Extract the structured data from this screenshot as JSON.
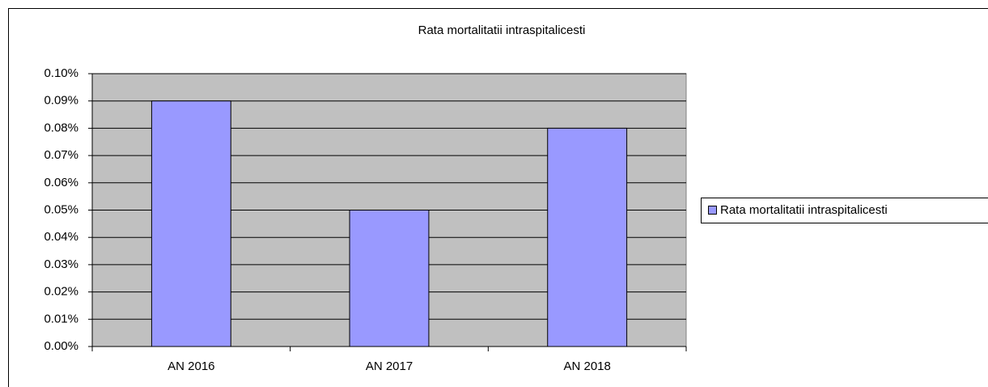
{
  "chart_data": {
    "type": "bar",
    "title": "Rata mortalitatii intraspitalicesti",
    "categories": [
      "AN 2016",
      "AN 2017",
      "AN 2018"
    ],
    "series": [
      {
        "name": "Rata mortalitatii intraspitalicesti",
        "color": "#9999ff",
        "values": [
          0.09,
          0.05,
          0.08
        ]
      }
    ],
    "ylim": [
      0,
      0.1
    ],
    "yticks": [
      {
        "value": 0,
        "label": "0.00%"
      },
      {
        "value": 0.01,
        "label": "0.01%"
      },
      {
        "value": 0.02,
        "label": "0.02%"
      },
      {
        "value": 0.03,
        "label": "0.03%"
      },
      {
        "value": 0.04,
        "label": "0.04%"
      },
      {
        "value": 0.05,
        "label": "0.05%"
      },
      {
        "value": 0.06,
        "label": "0.06%"
      },
      {
        "value": 0.07,
        "label": "0.07%"
      },
      {
        "value": 0.08,
        "label": "0.08%"
      },
      {
        "value": 0.09,
        "label": "0.09%"
      },
      {
        "value": 0.1,
        "label": "0.10%"
      }
    ],
    "grid": true,
    "legend": "right"
  }
}
